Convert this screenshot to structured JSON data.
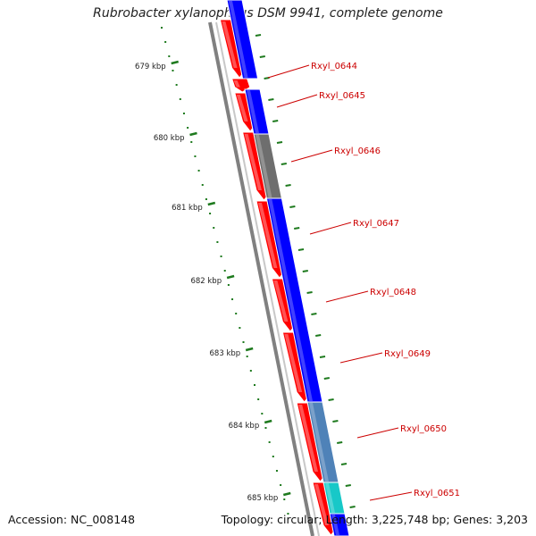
{
  "title": "Rubrobacter xylanophilus DSM 9941, complete genome",
  "accession_text": "Accession: NC_008148",
  "info_text": "Topology: circular; Length: 3,225,748 bp; Genes: 3,203",
  "colors": {
    "forward_genes": "#ff0000",
    "reverse_genes": "#0000ff",
    "gray_gene": "#6e6e6e",
    "steel_gene": "#4f82b8",
    "cyan_gene": "#17c8c8",
    "backbone": "#808080",
    "ticks": "#1e7a1e",
    "labels": "#cc0000"
  },
  "ticks": [
    {
      "kbp": 679,
      "label": "679 kbp"
    },
    {
      "kbp": 680,
      "label": "680 kbp"
    },
    {
      "kbp": 681,
      "label": "681 kbp"
    },
    {
      "kbp": 682,
      "label": "682 kbp"
    },
    {
      "kbp": 683,
      "label": "683 kbp"
    },
    {
      "kbp": 684,
      "label": "684 kbp"
    },
    {
      "kbp": 685,
      "label": "685 kbp"
    }
  ],
  "genes": [
    {
      "label": "Rxyl_0644",
      "color": "blue"
    },
    {
      "label": "Rxyl_0645",
      "color": "blue"
    },
    {
      "label": "Rxyl_0646",
      "color": "gray"
    },
    {
      "label": "Rxyl_0647",
      "color": "blue"
    },
    {
      "label": "Rxyl_0648",
      "color": "blue"
    },
    {
      "label": "Rxyl_0649",
      "color": "blue"
    },
    {
      "label": "Rxyl_0650",
      "color": "steel"
    },
    {
      "label": "Rxyl_0651",
      "color": "cyan"
    }
  ]
}
